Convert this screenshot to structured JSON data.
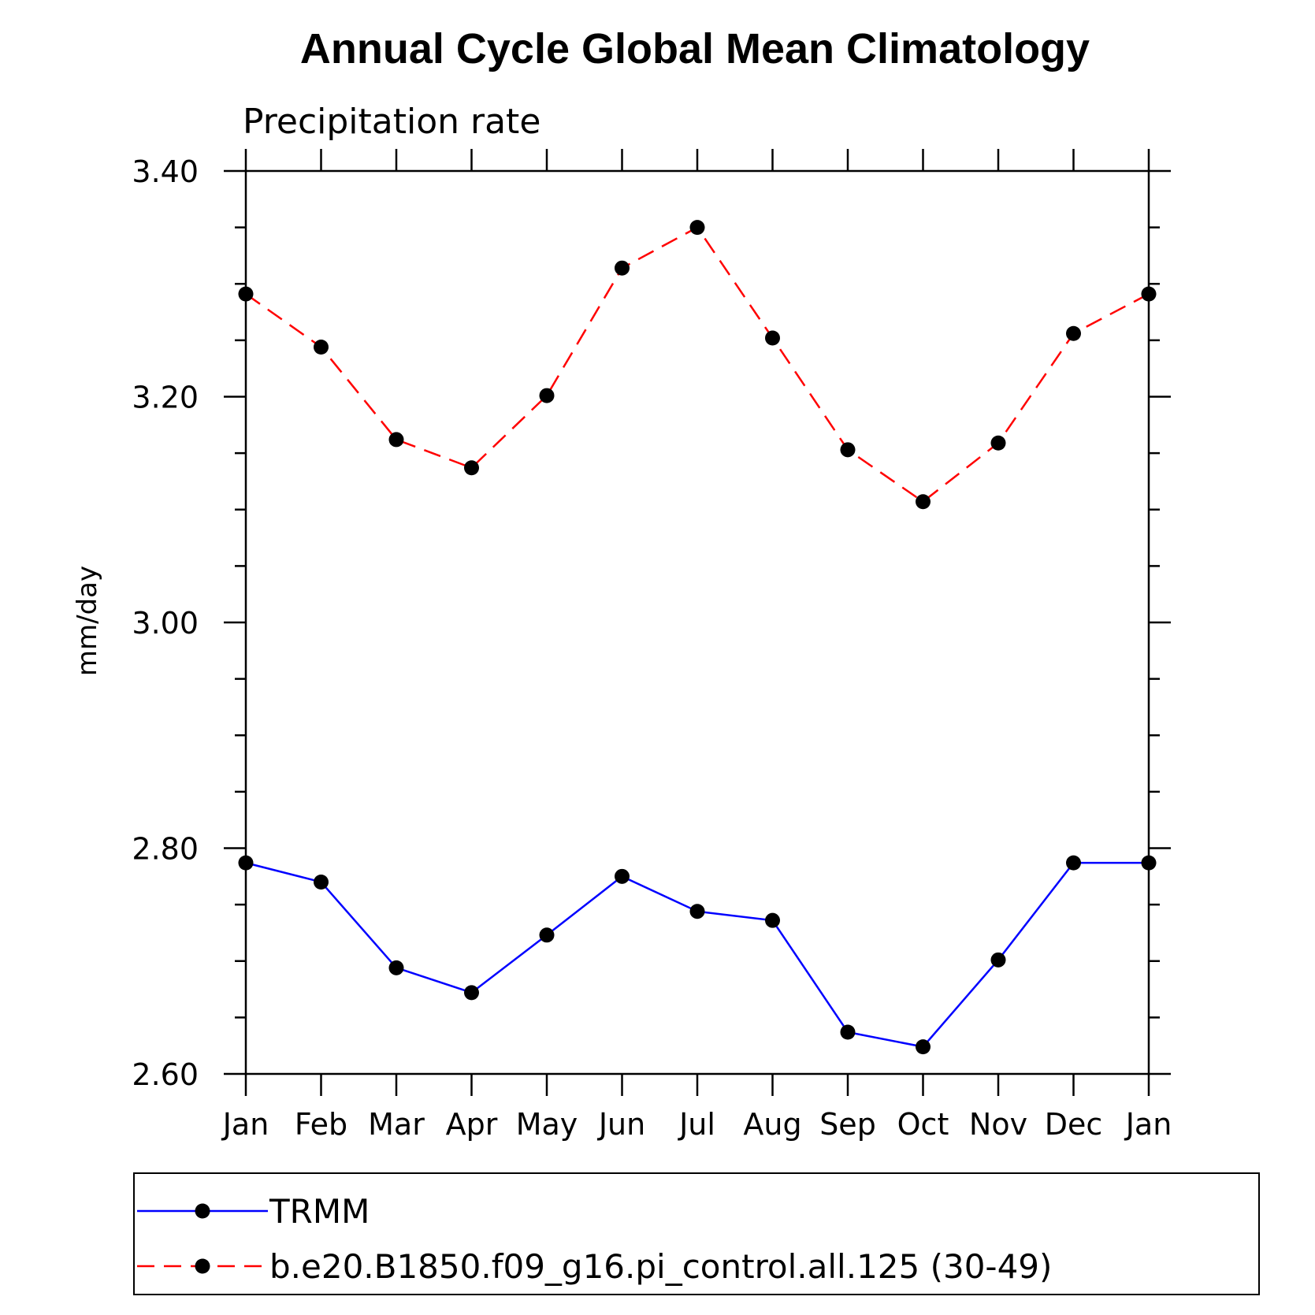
{
  "chart_data": {
    "type": "line",
    "title": "Annual Cycle Global Mean Climatology",
    "subtitle": "Precipitation rate",
    "ylabel": "mm/day",
    "xlabel": "",
    "categories": [
      "Jan",
      "Feb",
      "Mar",
      "Apr",
      "May",
      "Jun",
      "Jul",
      "Aug",
      "Sep",
      "Oct",
      "Nov",
      "Dec",
      "Jan"
    ],
    "ylim": [
      2.6,
      3.4
    ],
    "yticks": [
      "2.60",
      "2.80",
      "3.00",
      "3.20",
      "3.40"
    ],
    "grid": false,
    "legend_position": "bottom",
    "series": [
      {
        "name": "TRMM",
        "color": "#0000ff",
        "line_style": "solid",
        "marker": "filled-circle",
        "values": [
          2.787,
          2.77,
          2.694,
          2.672,
          2.723,
          2.775,
          2.744,
          2.736,
          2.637,
          2.624,
          2.701,
          2.787,
          2.787
        ]
      },
      {
        "name": "b.e20.B1850.f09_g16.pi_control.all.125 (30-49)",
        "color": "#ff0000",
        "line_style": "dashed",
        "marker": "filled-circle",
        "values": [
          3.291,
          3.244,
          3.162,
          3.137,
          3.201,
          3.314,
          3.35,
          3.252,
          3.153,
          3.107,
          3.159,
          3.256,
          3.291
        ]
      }
    ]
  }
}
